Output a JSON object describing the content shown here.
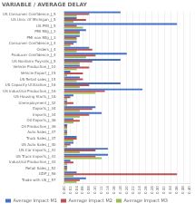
{
  "chart_data": {
    "type": "bar",
    "orientation": "horizontal",
    "title": "VARIABLE / AVERAGE DELAY",
    "categories": [
      "US Consumer Confidence_J_5",
      "US Univ. Of Michigan_J_5",
      "US PMI_J_5",
      "PMI Mfg_J_3",
      "PMI non Mfg_J_3",
      "Consumer Confidence_J_4",
      "Orders_J_4",
      "Producer Confidence_J_4",
      "US Nonfarm Payrolls_J_5",
      "Vehicle Production_J_10",
      "Vehicle Export_J_15",
      "US Retail sales_J_15",
      "US Capacity Utilization_J_16",
      "US Industrial Production_J_16",
      "US Housing Starts_J_18",
      "Unemployment_J_32",
      "Exports_J_34",
      "Imports_J_34",
      "Oil Exports_J_36",
      "Oil Production_J_36",
      "Auto Sales_J_37",
      "Truck Sales_J_37",
      "US Auto Sales_J_40",
      "US Car Imports_J_41",
      "US Truck Imports_J_41",
      "Industrial Production_J_43",
      "Retail Sales_J_52",
      "GDP_J_56",
      "Trade with US_J_57"
    ],
    "series": [
      {
        "name": "Average Impact M1",
        "color": "#4472c4",
        "values": [
          0.18,
          0.04,
          0.36,
          0.07,
          0.05,
          0.04,
          0.08,
          0.2,
          0.18,
          0.05,
          0.02,
          0.05,
          0.18,
          0.25,
          0.03,
          0.01,
          0.1,
          0.12,
          0.03,
          0.01,
          0.01,
          0.04,
          0.03,
          0.14,
          0.14,
          0.02,
          0.01,
          0.04,
          0.07
        ]
      },
      {
        "name": "Average Impact M2",
        "color": "#c0504d",
        "values": [
          0.08,
          0.07,
          0.04,
          0.05,
          0.04,
          0.03,
          0.09,
          0.1,
          0.09,
          0.08,
          0.06,
          0.06,
          0.08,
          0.13,
          0.02,
          0.03,
          0.09,
          0.08,
          0.05,
          0.01,
          0.01,
          0.04,
          0.02,
          0.1,
          0.1,
          0.03,
          0.01,
          0.36,
          0.05
        ]
      },
      {
        "name": "Average Impact M3",
        "color": "#9bbb59",
        "values": [
          0.04,
          0.03,
          0.06,
          0.05,
          0.04,
          0.02,
          0.04,
          0.07,
          0.05,
          0.04,
          0.01,
          0.04,
          0.05,
          0.1,
          0.01,
          0.01,
          0.05,
          0.05,
          0.03,
          0.01,
          0.01,
          0.03,
          0.01,
          0.05,
          0.12,
          0.01,
          0.01,
          0.03,
          0.04
        ]
      }
    ],
    "xlim": [
      0,
      0.4
    ],
    "xticks": [
      {
        "value": 0,
        "label": "0.00"
      },
      {
        "value": 0.02,
        "label": "0.02"
      },
      {
        "value": 0.04,
        "label": "0.04"
      },
      {
        "value": 0.06,
        "label": "0.06"
      },
      {
        "value": 0.08,
        "label": "0.08"
      },
      {
        "value": 0.1,
        "label": "0.10"
      },
      {
        "value": 0.12,
        "label": "0.12"
      },
      {
        "value": 0.14,
        "label": "0.14"
      },
      {
        "value": 0.16,
        "label": "0.16"
      },
      {
        "value": 0.18,
        "label": "0.18"
      },
      {
        "value": 0.2,
        "label": "0.20"
      },
      {
        "value": 0.22,
        "label": "0.22"
      },
      {
        "value": 0.24,
        "label": "0.24"
      },
      {
        "value": 0.26,
        "label": "0.26"
      },
      {
        "value": 0.28,
        "label": "0.28"
      },
      {
        "value": 0.3,
        "label": "0.30"
      },
      {
        "value": 0.32,
        "label": "0.32"
      },
      {
        "value": 0.34,
        "label": "0.34"
      },
      {
        "value": 0.36,
        "label": "0.36"
      },
      {
        "value": 0.38,
        "label": "0.38"
      },
      {
        "value": 0.4,
        "label": "0.40"
      }
    ],
    "grid": true,
    "legend": "bottom"
  }
}
